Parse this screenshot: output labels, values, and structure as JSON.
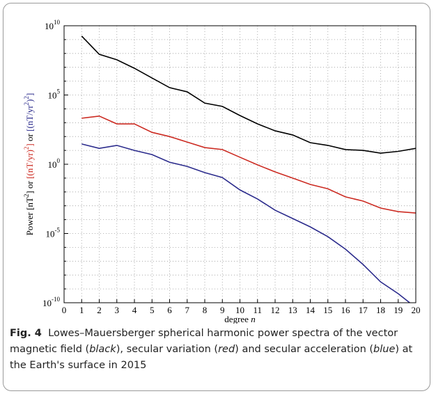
{
  "chart_data": {
    "type": "line",
    "x_label_parts": [
      {
        "text": "degree "
      },
      {
        "text": "n",
        "italic": true
      }
    ],
    "y_label_parts": [
      {
        "text": "Power [nT",
        "color": "#000000"
      },
      {
        "text": "2",
        "color": "#000000",
        "sup": true
      },
      {
        "text": "] or ",
        "color": "#000000"
      },
      {
        "text": "[(nT/yr)",
        "color": "#cc2b22"
      },
      {
        "text": "2",
        "color": "#cc2b22",
        "sup": true
      },
      {
        "text": "]",
        "color": "#cc2b22"
      },
      {
        "text": " or ",
        "color": "#000000"
      },
      {
        "text": "[(nT/yr",
        "color": "#2b2b8c"
      },
      {
        "text": "2",
        "color": "#2b2b8c",
        "sup": true
      },
      {
        "text": ")",
        "color": "#2b2b8c"
      },
      {
        "text": "2",
        "color": "#2b2b8c",
        "sup": true
      },
      {
        "text": "]",
        "color": "#2b2b8c"
      }
    ],
    "x": [
      1,
      2,
      3,
      4,
      5,
      6,
      7,
      8,
      9,
      10,
      11,
      12,
      13,
      14,
      15,
      16,
      17,
      18,
      19,
      20
    ],
    "series": [
      {
        "name": "vector magnetic field",
        "color": "#000000",
        "values": [
          1800000000,
          87000000,
          35000000,
          8500000,
          1700000,
          340000,
          170000,
          26000,
          15000,
          3300,
          820,
          260,
          130,
          36,
          23,
          11.5,
          10,
          6.3,
          8.5,
          14
        ]
      },
      {
        "name": "secular variation",
        "color": "#cc2b22",
        "values": [
          2100,
          3000,
          820,
          820,
          200,
          100,
          40,
          16,
          11.5,
          3.2,
          0.9,
          0.28,
          0.1,
          0.035,
          0.017,
          0.0044,
          0.0022,
          0.00068,
          0.00038,
          0.0003
        ]
      },
      {
        "name": "secular acceleration",
        "color": "#2b2b8c",
        "values": [
          29,
          14,
          23,
          10,
          5,
          1.4,
          0.7,
          0.25,
          0.11,
          0.014,
          0.0031,
          0.00048,
          0.00012,
          3e-05,
          5.9e-06,
          7.4e-07,
          5.8e-08,
          3.2e-09,
          4.5e-10,
          4.5e-11
        ]
      }
    ],
    "xlim": [
      0,
      20
    ],
    "xticks": [
      0,
      1,
      2,
      3,
      4,
      5,
      6,
      7,
      8,
      9,
      10,
      11,
      12,
      13,
      14,
      15,
      16,
      17,
      18,
      19,
      20
    ],
    "ylim": [
      1e-10,
      10000000000
    ],
    "log_y": true,
    "yticks": [
      {
        "value": 1e-10,
        "label": "10",
        "exponent": "-10"
      },
      {
        "value": 1e-05,
        "label": "10",
        "exponent": "-5"
      },
      {
        "value": 1,
        "label": "10",
        "exponent": "0"
      },
      {
        "value": 100000,
        "label": "10",
        "exponent": "5"
      },
      {
        "value": 10000000000,
        "label": "10",
        "exponent": "10"
      }
    ],
    "yminorticks": [
      1e-10,
      1e-09,
      1e-08,
      1e-07,
      1e-06,
      1e-05,
      0.0001,
      0.001,
      0.01,
      0.1,
      1,
      10,
      100,
      1000,
      10000,
      100000,
      1000000,
      10000000,
      100000000,
      1000000000,
      10000000000
    ],
    "grid": true
  },
  "caption": [
    {
      "text": "Fig. 4",
      "bold": true
    },
    {
      "text": "  Lowes–Mauersberger spherical harmonic power spectra of the vector magnetic field ("
    },
    {
      "text": "black",
      "italic": true
    },
    {
      "text": "), secular variation ("
    },
    {
      "text": "red",
      "italic": true
    },
    {
      "text": ") and secular acceleration ("
    },
    {
      "text": "blue",
      "italic": true
    },
    {
      "text": ") at the Earth's surface in 2015"
    }
  ]
}
